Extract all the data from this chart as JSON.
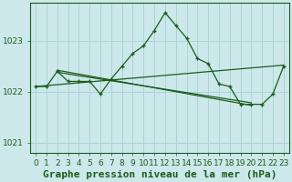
{
  "xlabel": "Graphe pression niveau de la mer (hPa)",
  "background_color": "#cce8ea",
  "grid_color": "#aad4d8",
  "line_color": "#1a5c1a",
  "xlim": [
    -0.5,
    23.5
  ],
  "ylim": [
    1020.8,
    1023.75
  ],
  "yticks": [
    1021,
    1022,
    1023
  ],
  "xticks": [
    0,
    1,
    2,
    3,
    4,
    5,
    6,
    7,
    8,
    9,
    10,
    11,
    12,
    13,
    14,
    15,
    16,
    17,
    18,
    19,
    20,
    21,
    22,
    23
  ],
  "series": [
    {
      "x": [
        0,
        1,
        2,
        3,
        4,
        5,
        6,
        7,
        8,
        9,
        10,
        11,
        12,
        13,
        14,
        15,
        16,
        17,
        18,
        19,
        20,
        21,
        22,
        23
      ],
      "y": [
        1022.1,
        1022.1,
        1022.4,
        1022.2,
        1022.2,
        1022.2,
        1021.95,
        1022.25,
        1022.5,
        1022.75,
        1022.9,
        1023.2,
        1023.55,
        1023.3,
        1023.05,
        1022.65,
        1022.55,
        1022.15,
        1022.1,
        1021.75,
        1021.75,
        1021.75,
        1021.95,
        1022.5
      ],
      "marker": true
    },
    {
      "x": [
        0,
        1,
        2,
        3,
        4,
        5,
        6,
        7
      ],
      "y": [
        1022.1,
        1022.1,
        1022.4,
        1022.2,
        1022.2,
        1022.2,
        1021.95,
        1022.25
      ],
      "marker": true
    },
    {
      "x": [
        0,
        23
      ],
      "y": [
        1022.1,
        1022.52
      ],
      "marker": false
    },
    {
      "x": [
        2,
        20
      ],
      "y": [
        1022.42,
        1021.73
      ],
      "marker": false
    },
    {
      "x": [
        2,
        20
      ],
      "y": [
        1022.38,
        1021.78
      ],
      "marker": false
    }
  ],
  "font_color": "#1a5c1a",
  "tick_fontsize": 6.5,
  "xlabel_fontsize": 8
}
